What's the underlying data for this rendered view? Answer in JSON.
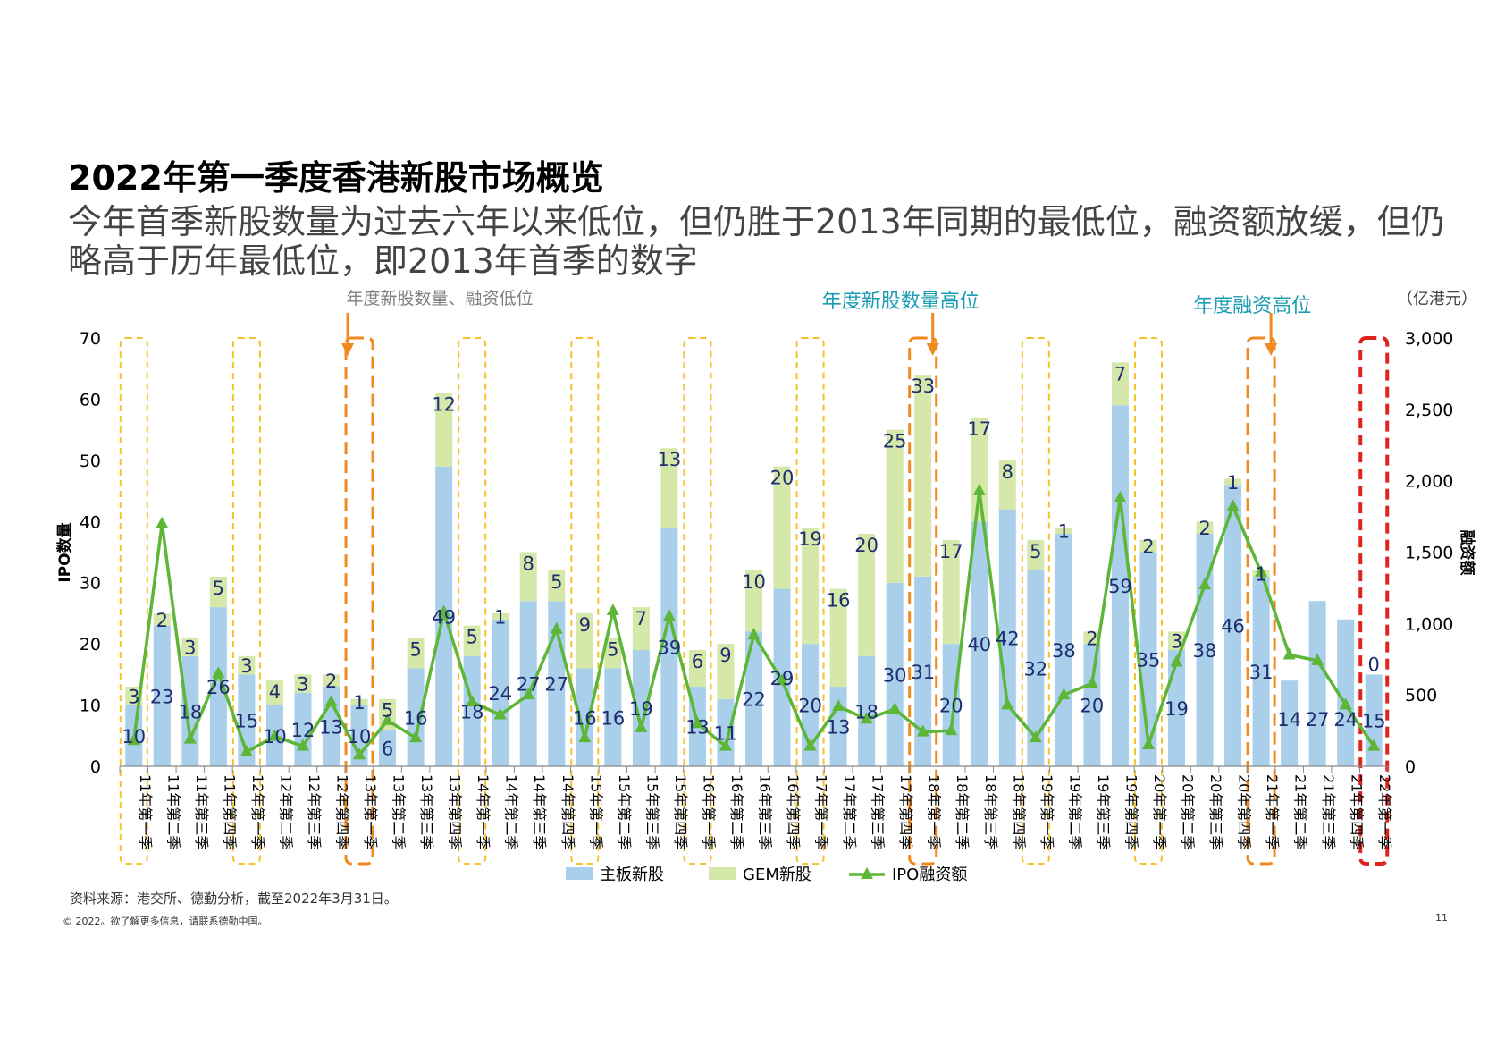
{
  "page": {
    "title": "2022年第一季度香港新股市场概览",
    "subtitle": "今年首季新股数量为过去六年以来低位，但仍胜于2013年同期的最低位，融资额放缓，但仍略高于历年最低位，即2013年首季的数字",
    "source": "资料来源：港交所、德勤分析，截至2022年3月31日。",
    "copyright": "© 2022。欲了解更多信息，请联系德勤中国。",
    "page_number": "11"
  },
  "colors": {
    "main_board": "#a9cfea",
    "gem": "#d6e8a9",
    "line": "#5db637",
    "label": "#1f2d6e",
    "yellow_box": "#f6c12a",
    "orange_box": "#f08a1e",
    "red_box": "#e0231c",
    "annot_gray": "#7f7f7f",
    "annot_teal": "#1a9db3"
  },
  "chart_data": {
    "type": "bar",
    "stacked": true,
    "categories": [
      "11年第一季",
      "11年第二季",
      "11年第三季",
      "11年第四季",
      "12年第一季",
      "12年第二季",
      "12年第三季",
      "12年第四季",
      "13年第一季",
      "13年第二季",
      "13年第三季",
      "13年第四季",
      "14年第一季",
      "14年第二季",
      "14年第三季",
      "14年第四季",
      "15年第一季",
      "15年第二季",
      "15年第三季",
      "15年第四季",
      "16年第一季",
      "16年第二季",
      "16年第三季",
      "16年第四季",
      "17年第一季",
      "17年第二季",
      "17年第三季",
      "17年第四季",
      "18年第一季",
      "18年第二季",
      "18年第三季",
      "18年第四季",
      "19年第一季",
      "19年第二季",
      "19年第三季",
      "19年第四季",
      "20年第一季",
      "20年第二季",
      "20年第三季",
      "20年第四季",
      "21年第一季",
      "21年第二季",
      "21年第三季",
      "21年第四季",
      "22年第一季"
    ],
    "series": [
      {
        "name": "主板新股",
        "axis": "left",
        "values": [
          10,
          23,
          18,
          26,
          15,
          10,
          12,
          13,
          10,
          6,
          16,
          49,
          18,
          24,
          27,
          27,
          16,
          16,
          19,
          39,
          13,
          11,
          22,
          29,
          20,
          13,
          18,
          30,
          31,
          20,
          40,
          42,
          32,
          38,
          20,
          59,
          35,
          19,
          38,
          46,
          31,
          14,
          27,
          24,
          15
        ]
      },
      {
        "name": "GEM新股",
        "axis": "left",
        "values": [
          3,
          2,
          3,
          5,
          3,
          4,
          3,
          2,
          1,
          5,
          5,
          12,
          5,
          1,
          8,
          5,
          9,
          5,
          7,
          13,
          6,
          9,
          10,
          20,
          19,
          16,
          20,
          25,
          33,
          17,
          17,
          8,
          5,
          1,
          2,
          7,
          2,
          3,
          2,
          1,
          1,
          0,
          0,
          0,
          0
        ]
      },
      {
        "name": "IPO融资额",
        "axis": "right",
        "type": "line",
        "values": [
          180,
          1700,
          190,
          650,
          100,
          210,
          140,
          450,
          80,
          320,
          200,
          1080,
          450,
          360,
          500,
          960,
          200,
          1090,
          270,
          1050,
          300,
          140,
          920,
          600,
          140,
          420,
          330,
          400,
          240,
          250,
          1930,
          430,
          200,
          500,
          580,
          1880,
          150,
          730,
          1270,
          1820,
          1360,
          780,
          740,
          430,
          140
        ]
      }
    ],
    "stack_labels_hidden": [
      false,
      false,
      false,
      false,
      false,
      false,
      false,
      false,
      false,
      false,
      false,
      false,
      false,
      false,
      false,
      false,
      false,
      false,
      false,
      false,
      false,
      false,
      false,
      false,
      false,
      false,
      false,
      false,
      false,
      false,
      false,
      false,
      false,
      false,
      false,
      false,
      false,
      false,
      false,
      false,
      false,
      true,
      true,
      true,
      false
    ],
    "xlabel": "",
    "ylabel": "IPO数量",
    "y2label": "融资额",
    "y2unit": "（亿港元）",
    "ylim": [
      0,
      70
    ],
    "yticks": [
      0,
      10,
      20,
      30,
      40,
      50,
      60,
      70
    ],
    "y2lim": [
      0,
      3000
    ],
    "y2ticks": [
      "0",
      "500",
      "1,000",
      "1,500",
      "2,000",
      "2,500",
      "3,000"
    ],
    "y2tick_values": [
      0,
      500,
      1000,
      1500,
      2000,
      2500,
      3000
    ],
    "legend": [
      "主板新股",
      "GEM新股",
      "IPO融资额"
    ],
    "legend_position": "bottom",
    "highlight_boxes": [
      {
        "category_index": 0,
        "style": "yellow"
      },
      {
        "category_index": 4,
        "style": "yellow"
      },
      {
        "category_index": 8,
        "style": "orange"
      },
      {
        "category_index": 12,
        "style": "yellow"
      },
      {
        "category_index": 16,
        "style": "yellow"
      },
      {
        "category_index": 20,
        "style": "yellow"
      },
      {
        "category_index": 24,
        "style": "yellow"
      },
      {
        "category_index": 28,
        "style": "orange"
      },
      {
        "category_index": 32,
        "style": "yellow"
      },
      {
        "category_index": 36,
        "style": "yellow"
      },
      {
        "category_index": 40,
        "style": "orange"
      },
      {
        "category_index": 44,
        "style": "red"
      }
    ],
    "annotations": [
      {
        "text": "年度新股数量、融资低位",
        "category_index": 8,
        "color": "gray"
      },
      {
        "text": "年度新股数量高位",
        "category_index": 28,
        "color": "teal"
      },
      {
        "text": "年度融资高位",
        "category_index": 40,
        "color": "teal"
      }
    ]
  }
}
